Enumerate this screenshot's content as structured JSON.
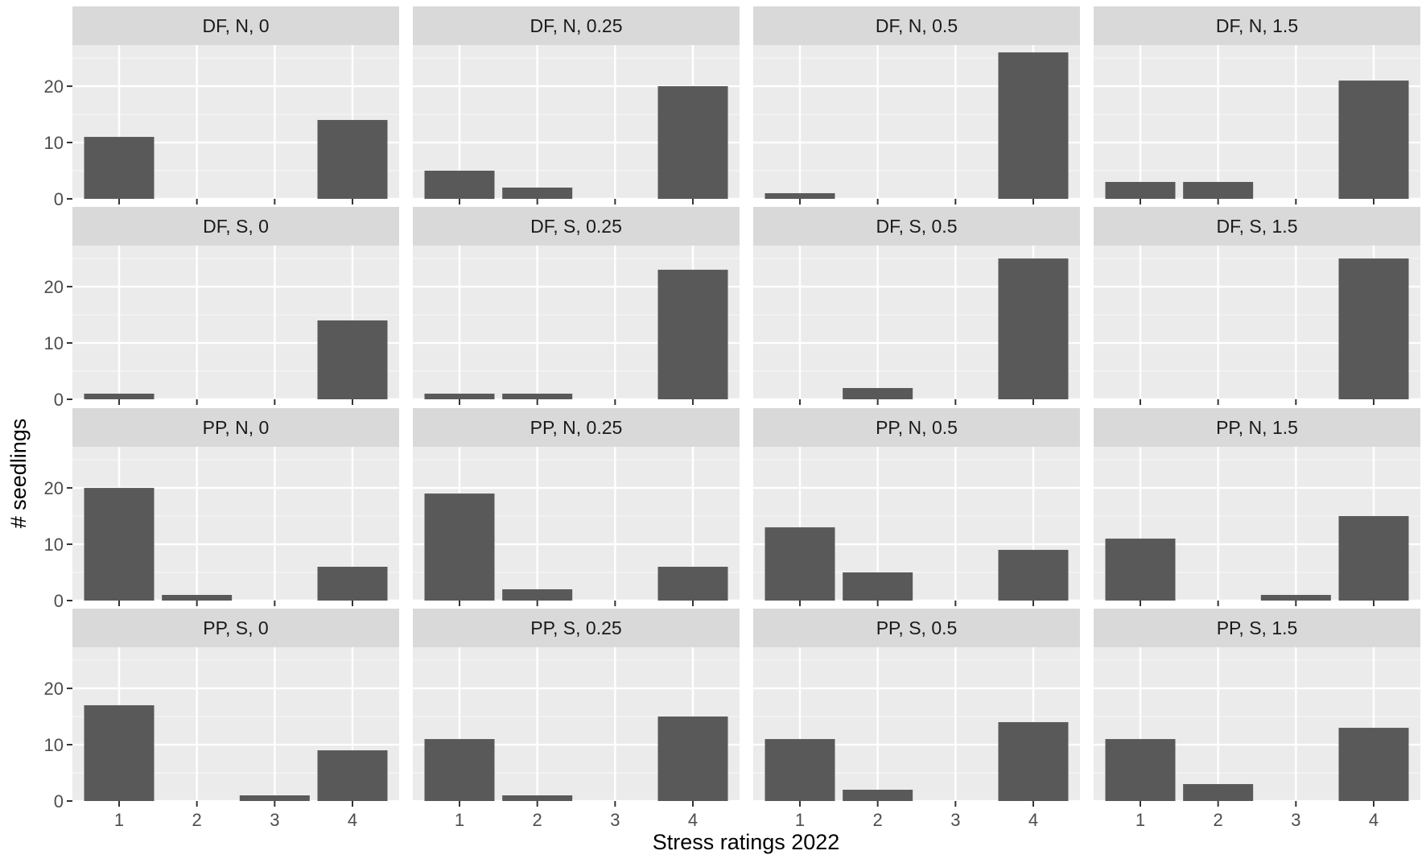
{
  "chart_data": {
    "type": "bar",
    "layout": "facet_grid",
    "xlabel": "Stress ratings 2022",
    "ylabel": "# seedlings",
    "categories": [
      "1",
      "2",
      "3",
      "4"
    ],
    "y_ticks": [
      0,
      10,
      20
    ],
    "ylim": [
      0,
      27.3
    ],
    "grid": true,
    "colors": {
      "bar": "#595959",
      "panel": "#ebebeb",
      "strip": "#d9d9d9",
      "grid_major": "#ffffff",
      "grid_minor": "#f5f5f5"
    },
    "panels": [
      {
        "label": "DF, N, 0",
        "values": [
          11,
          0,
          0,
          14
        ]
      },
      {
        "label": "DF, N, 0.25",
        "values": [
          5,
          2,
          0,
          20
        ]
      },
      {
        "label": "DF, N, 0.5",
        "values": [
          1,
          0,
          0,
          26
        ]
      },
      {
        "label": "DF, N, 1.5",
        "values": [
          3,
          3,
          0,
          21
        ]
      },
      {
        "label": "DF, S, 0",
        "values": [
          1,
          0,
          0,
          14
        ]
      },
      {
        "label": "DF, S, 0.25",
        "values": [
          1,
          1,
          0,
          23
        ]
      },
      {
        "label": "DF, S, 0.5",
        "values": [
          0,
          2,
          0,
          25
        ]
      },
      {
        "label": "DF, S, 1.5",
        "values": [
          0,
          0,
          0,
          25
        ]
      },
      {
        "label": "PP, N, 0",
        "values": [
          20,
          1,
          0,
          6
        ]
      },
      {
        "label": "PP, N, 0.25",
        "values": [
          19,
          2,
          0,
          6
        ]
      },
      {
        "label": "PP, N, 0.5",
        "values": [
          13,
          5,
          0,
          9
        ]
      },
      {
        "label": "PP, N, 1.5",
        "values": [
          11,
          0,
          1,
          15
        ]
      },
      {
        "label": "PP, S, 0",
        "values": [
          17,
          0,
          1,
          9
        ]
      },
      {
        "label": "PP, S, 0.25",
        "values": [
          11,
          1,
          0,
          15
        ]
      },
      {
        "label": "PP, S, 0.5",
        "values": [
          11,
          2,
          0,
          14
        ]
      },
      {
        "label": "PP, S, 1.5",
        "values": [
          11,
          3,
          0,
          13
        ]
      }
    ]
  }
}
